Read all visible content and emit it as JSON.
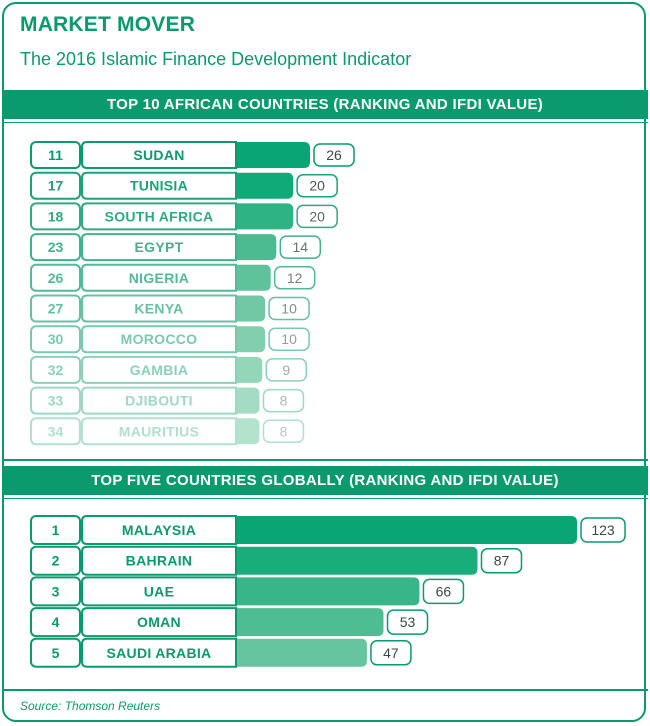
{
  "header": {
    "title": "MARKET MOVER",
    "subtitle": "The 2016 Islamic Finance Development Indicator"
  },
  "footer": {
    "source": "Source: Thomson Reuters"
  },
  "colors": {
    "accent": "#0b9a6d",
    "border": "#0b9a6d"
  },
  "chart_data": [
    {
      "type": "bar",
      "orientation": "horizontal",
      "title": "TOP 10 AFRICAN COUNTRIES (RANKING AND IFDI VALUE)",
      "categories": [
        "SUDAN",
        "TUNISIA",
        "SOUTH AFRICA",
        "EGYPT",
        "NIGERIA",
        "KENYA",
        "MOROCCO",
        "GAMBIA",
        "DJIBOUTI",
        "MAURITIUS"
      ],
      "ranks": [
        "11",
        "17",
        "18",
        "23",
        "26",
        "27",
        "30",
        "32",
        "33",
        "34"
      ],
      "values": [
        26,
        20,
        20,
        14,
        12,
        10,
        10,
        9,
        8,
        8
      ],
      "colors": [
        "#0aa574",
        "#10aa78",
        "#2eb384",
        "#4dbb91",
        "#5ec29a",
        "#70c8a4",
        "#82cfad",
        "#93d6b8",
        "#a3dcc2",
        "#b3e3cc"
      ],
      "grid": false,
      "legend": "none"
    },
    {
      "type": "bar",
      "orientation": "horizontal",
      "title": "TOP FIVE COUNTRIES GLOBALLY (RANKING AND IFDI VALUE)",
      "categories": [
        "MALAYSIA",
        "BAHRAIN",
        "UAE",
        "OMAN",
        "SAUDI ARABIA"
      ],
      "ranks": [
        "1",
        "2",
        "3",
        "4",
        "5"
      ],
      "values": [
        123,
        87,
        66,
        53,
        47
      ],
      "colors": [
        "#0aa574",
        "#1aad7c",
        "#38b689",
        "#4fbd93",
        "#66c59f"
      ],
      "grid": false,
      "legend": "none"
    }
  ]
}
